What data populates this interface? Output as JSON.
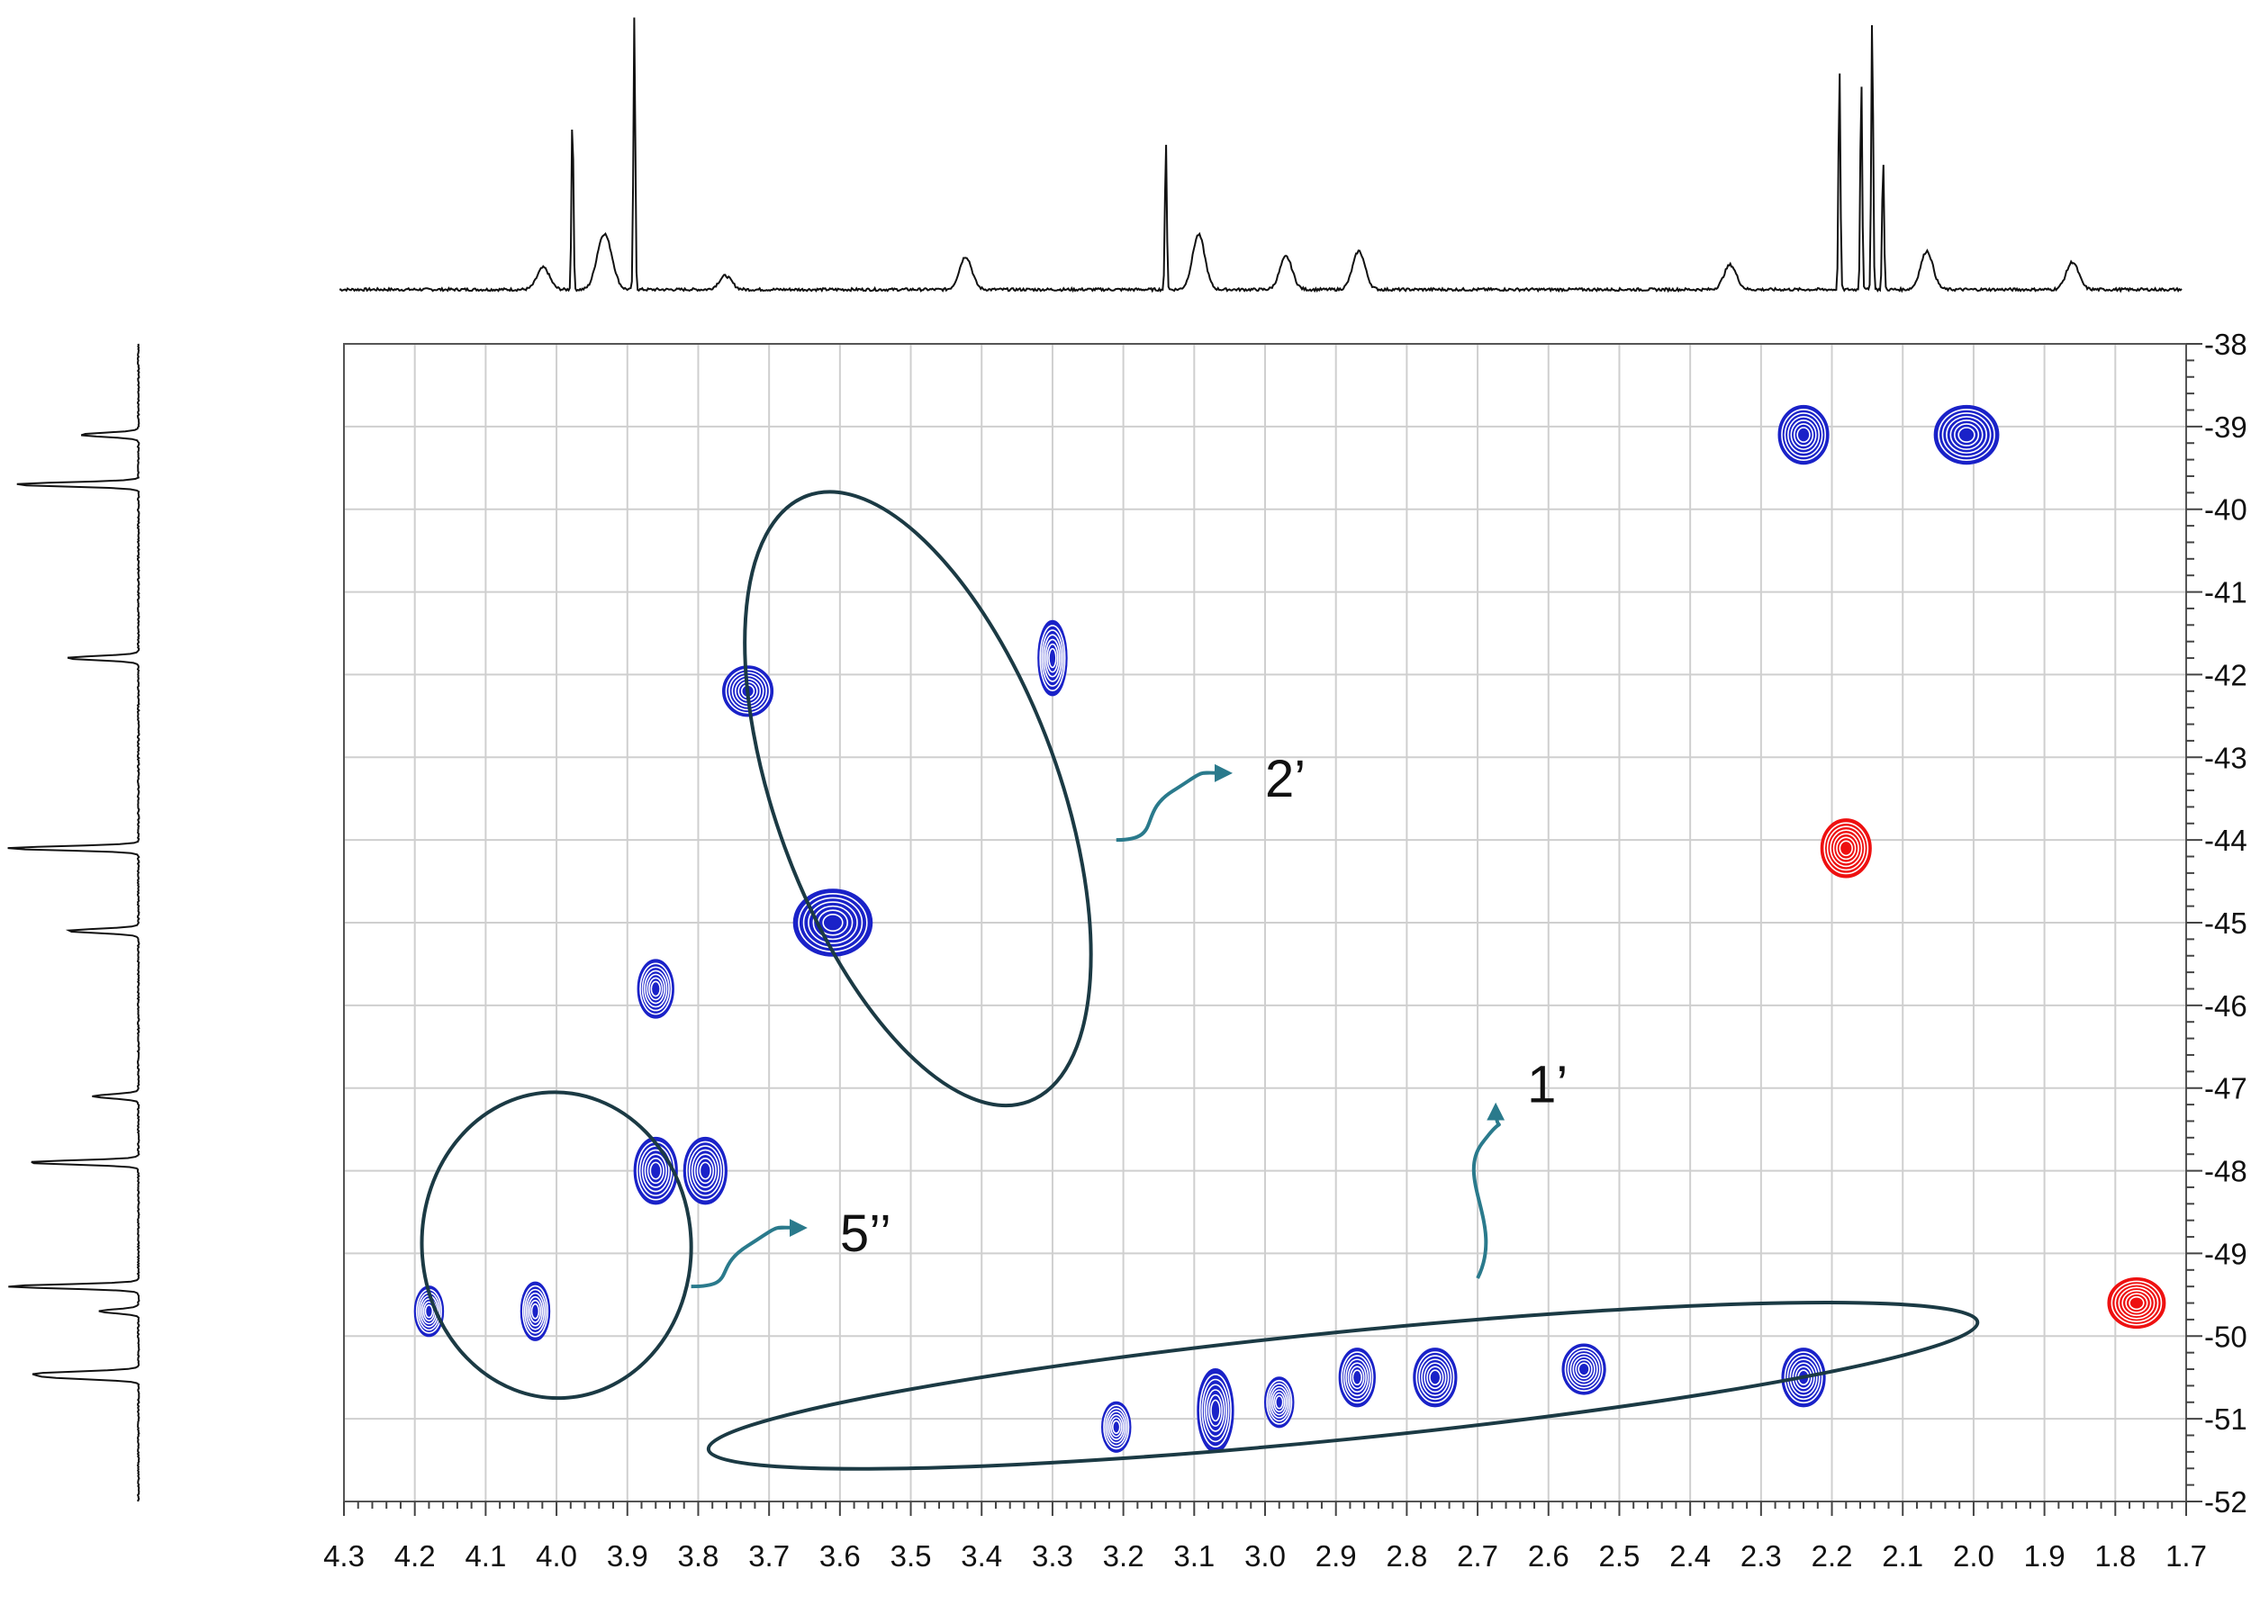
{
  "chart_data": {
    "type": "heatmap",
    "title": "",
    "xlabel": "",
    "ylabel": "",
    "x_axis": {
      "range": [
        4.3,
        1.7
      ],
      "reversed": true,
      "step": 0.1,
      "grid": true
    },
    "y_axis": {
      "range": [
        -38,
        -52
      ],
      "step": 1,
      "grid": true,
      "position": "right"
    },
    "x_tick_labels": [
      "4.3",
      "4.2",
      "4.1",
      "4.0",
      "3.9",
      "3.8",
      "3.7",
      "3.6",
      "3.5",
      "3.4",
      "3.3",
      "3.2",
      "3.1",
      "3.0",
      "2.9",
      "2.8",
      "2.7",
      "2.6",
      "2.5",
      "2.4",
      "2.3",
      "2.2",
      "2.1",
      "2.0",
      "1.9",
      "1.8",
      "1.7"
    ],
    "y_tick_labels": [
      "-38",
      "-39",
      "-40",
      "-41",
      "-42",
      "-43",
      "-44",
      "-45",
      "-46",
      "-47",
      "-48",
      "-49",
      "-50",
      "-51",
      "-52"
    ],
    "colors": {
      "positive": "#1a22c8",
      "negative": "#ee1111",
      "annotation": "#1b3a44",
      "arrow": "#2a7a8c",
      "grid": "#cfcfcf",
      "trace": "#111111"
    },
    "cross_peaks": [
      {
        "x": 2.24,
        "y": -39.1,
        "phase": "positive",
        "w": 0.07,
        "h": 0.7
      },
      {
        "x": 2.01,
        "y": -39.1,
        "phase": "positive",
        "w": 0.09,
        "h": 0.7
      },
      {
        "x": 3.3,
        "y": -41.8,
        "phase": "positive",
        "w": 0.04,
        "h": 0.9
      },
      {
        "x": 3.73,
        "y": -42.2,
        "phase": "positive",
        "w": 0.07,
        "h": 0.6
      },
      {
        "x": 3.61,
        "y": -45.0,
        "phase": "positive",
        "w": 0.11,
        "h": 0.8
      },
      {
        "x": 3.86,
        "y": -45.8,
        "phase": "positive",
        "w": 0.05,
        "h": 0.7
      },
      {
        "x": 3.86,
        "y": -48.0,
        "phase": "positive",
        "w": 0.06,
        "h": 0.8
      },
      {
        "x": 3.79,
        "y": -48.0,
        "phase": "positive",
        "w": 0.06,
        "h": 0.8
      },
      {
        "x": 4.18,
        "y": -49.7,
        "phase": "positive",
        "w": 0.04,
        "h": 0.6
      },
      {
        "x": 4.03,
        "y": -49.7,
        "phase": "positive",
        "w": 0.04,
        "h": 0.7
      },
      {
        "x": 3.21,
        "y": -51.1,
        "phase": "positive",
        "w": 0.04,
        "h": 0.6
      },
      {
        "x": 3.07,
        "y": -50.9,
        "phase": "positive",
        "w": 0.05,
        "h": 1.0
      },
      {
        "x": 2.98,
        "y": -50.8,
        "phase": "positive",
        "w": 0.04,
        "h": 0.6
      },
      {
        "x": 2.87,
        "y": -50.5,
        "phase": "positive",
        "w": 0.05,
        "h": 0.7
      },
      {
        "x": 2.76,
        "y": -50.5,
        "phase": "positive",
        "w": 0.06,
        "h": 0.7
      },
      {
        "x": 2.55,
        "y": -50.4,
        "phase": "positive",
        "w": 0.06,
        "h": 0.6
      },
      {
        "x": 2.24,
        "y": -50.5,
        "phase": "positive",
        "w": 0.06,
        "h": 0.7
      },
      {
        "x": 2.18,
        "y": -44.1,
        "phase": "negative",
        "w": 0.07,
        "h": 0.7
      },
      {
        "x": 1.77,
        "y": -49.6,
        "phase": "negative",
        "w": 0.08,
        "h": 0.6
      }
    ],
    "groups": [
      {
        "label": "2’",
        "ellipse": {
          "cx": 3.49,
          "cy": -43.5,
          "rx": 0.2,
          "ry": 3.9,
          "rotation": -0.35
        },
        "arrow_from": [
          3.21,
          -44.0
        ],
        "label_at": [
          3.0,
          -43.3
        ]
      },
      {
        "label": "5’’",
        "ellipse": {
          "cx": 4.0,
          "cy": -48.9,
          "rx": 0.19,
          "ry": 1.85,
          "rotation": -0.05
        },
        "arrow_from": [
          3.81,
          -49.4
        ],
        "label_at": [
          3.6,
          -48.8
        ]
      },
      {
        "label": "1’",
        "ellipse": {
          "cx": 2.89,
          "cy": -50.6,
          "rx": 0.9,
          "ry": 1.3,
          "rotation": -0.1
        },
        "arrow_from": [
          2.7,
          -49.3
        ],
        "label_at": [
          2.63,
          -47.0
        ]
      }
    ],
    "f2_projection": {
      "peaks": [
        {
          "x": 3.84,
          "h": 0.65
        },
        {
          "x": 3.755,
          "h": 1.0
        },
        {
          "x": 3.025,
          "h": 0.55
        },
        {
          "x": 2.98,
          "h": 0.2
        },
        {
          "x": 2.1,
          "h": 0.82
        },
        {
          "x": 2.07,
          "h": 0.78
        },
        {
          "x": 2.055,
          "h": 1.0
        },
        {
          "x": 2.04,
          "h": 0.48
        },
        {
          "x": 3.3,
          "h": 0.12
        },
        {
          "x": 3.88,
          "h": 0.08
        },
        {
          "x": 3.79,
          "h": 0.1
        },
        {
          "x": 3.8,
          "h": 0.14
        },
        {
          "x": 2.86,
          "h": 0.12
        },
        {
          "x": 2.76,
          "h": 0.14
        },
        {
          "x": 2.25,
          "h": 0.09
        },
        {
          "x": 1.98,
          "h": 0.14
        },
        {
          "x": 1.78,
          "h": 0.1
        },
        {
          "x": 3.63,
          "h": 0.05
        }
      ]
    },
    "f1_projection": {
      "peaks": [
        {
          "y": -39.1,
          "h": 0.45
        },
        {
          "y": -39.7,
          "h": 0.95
        },
        {
          "y": -41.8,
          "h": 0.55
        },
        {
          "y": -44.1,
          "h": 1.0
        },
        {
          "y": -45.1,
          "h": 0.55
        },
        {
          "y": -47.1,
          "h": 0.35
        },
        {
          "y": -47.9,
          "h": 0.85
        },
        {
          "y": -49.4,
          "h": 1.0
        },
        {
          "y": -49.7,
          "h": 0.3
        },
        {
          "y": -50.45,
          "h": 0.7
        },
        {
          "y": -50.5,
          "h": 0.6
        }
      ]
    }
  }
}
